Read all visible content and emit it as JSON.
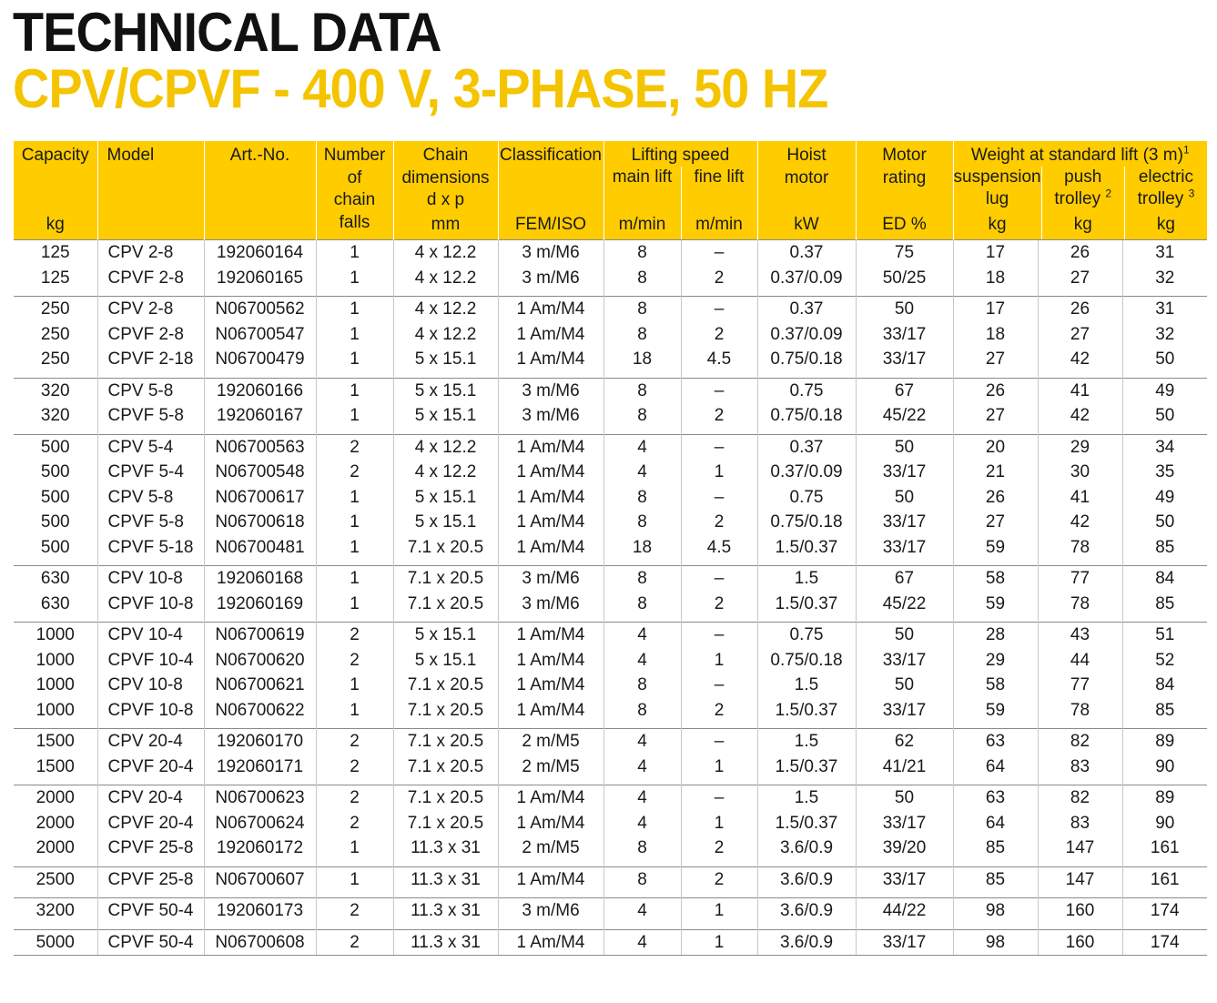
{
  "title": "TECHNICAL DATA",
  "subtitle": "CPV/CPVF - 400 V, 3-PHASE, 50 HZ",
  "header": {
    "capacity": "Capacity",
    "capacity_unit": "kg",
    "model": "Model",
    "art_no": "Art.-No.",
    "chain_falls_1": "Number",
    "chain_falls_2": "of",
    "chain_falls_3": "chain",
    "chain_falls_4": "falls",
    "chain_dim_1": "Chain",
    "chain_dim_2": "dimensions",
    "chain_dim_3": "d x p",
    "chain_dim_unit": "mm",
    "classification": "Classification",
    "classification_unit": "FEM/ISO",
    "lifting_speed": "Lifting speed",
    "main_lift": "main lift",
    "main_lift_unit": "m/min",
    "fine_lift": "fine lift",
    "fine_lift_unit": "m/min",
    "hoist_1": "Hoist",
    "hoist_2": "motor",
    "hoist_unit": "kW",
    "motor_1": "Motor",
    "motor_2": "rating",
    "motor_unit": "ED %",
    "weight": "Weight at standard lift (3 m)",
    "weight_sup": "1",
    "suspension_1": "suspension",
    "suspension_2": "lug",
    "suspension_unit": "kg",
    "push_1": "push",
    "push_2": "trolley",
    "push_sup": "2",
    "push_unit": "kg",
    "electric_1": "electric",
    "electric_2": "trolley",
    "electric_sup": "3",
    "electric_unit": "kg"
  },
  "groups": [
    [
      [
        "125",
        "CPV 2-8",
        "192060164",
        "1",
        "4 x 12.2",
        "3 m/M6",
        "8",
        "–",
        "0.37",
        "75",
        "17",
        "26",
        "31"
      ],
      [
        "125",
        "CPVF 2-8",
        "192060165",
        "1",
        "4 x 12.2",
        "3 m/M6",
        "8",
        "2",
        "0.37/0.09",
        "50/25",
        "18",
        "27",
        "32"
      ]
    ],
    [
      [
        "250",
        "CPV 2-8",
        "N06700562",
        "1",
        "4 x 12.2",
        "1 Am/M4",
        "8",
        "–",
        "0.37",
        "50",
        "17",
        "26",
        "31"
      ],
      [
        "250",
        "CPVF 2-8",
        "N06700547",
        "1",
        "4 x 12.2",
        "1 Am/M4",
        "8",
        "2",
        "0.37/0.09",
        "33/17",
        "18",
        "27",
        "32"
      ],
      [
        "250",
        "CPVF 2-18",
        "N06700479",
        "1",
        "5 x 15.1",
        "1 Am/M4",
        "18",
        "4.5",
        "0.75/0.18",
        "33/17",
        "27",
        "42",
        "50"
      ]
    ],
    [
      [
        "320",
        "CPV 5-8",
        "192060166",
        "1",
        "5 x 15.1",
        "3 m/M6",
        "8",
        "–",
        "0.75",
        "67",
        "26",
        "41",
        "49"
      ],
      [
        "320",
        "CPVF 5-8",
        "192060167",
        "1",
        "5 x 15.1",
        "3 m/M6",
        "8",
        "2",
        "0.75/0.18",
        "45/22",
        "27",
        "42",
        "50"
      ]
    ],
    [
      [
        "500",
        "CPV 5-4",
        "N06700563",
        "2",
        "4 x 12.2",
        "1 Am/M4",
        "4",
        "–",
        "0.37",
        "50",
        "20",
        "29",
        "34"
      ],
      [
        "500",
        "CPVF 5-4",
        "N06700548",
        "2",
        "4 x 12.2",
        "1 Am/M4",
        "4",
        "1",
        "0.37/0.09",
        "33/17",
        "21",
        "30",
        "35"
      ],
      [
        "500",
        "CPV 5-8",
        "N06700617",
        "1",
        "5 x 15.1",
        "1 Am/M4",
        "8",
        "–",
        "0.75",
        "50",
        "26",
        "41",
        "49"
      ],
      [
        "500",
        "CPVF 5-8",
        "N06700618",
        "1",
        "5 x 15.1",
        "1 Am/M4",
        "8",
        "2",
        "0.75/0.18",
        "33/17",
        "27",
        "42",
        "50"
      ],
      [
        "500",
        "CPVF 5-18",
        "N06700481",
        "1",
        "7.1 x 20.5",
        "1 Am/M4",
        "18",
        "4.5",
        "1.5/0.37",
        "33/17",
        "59",
        "78",
        "85"
      ]
    ],
    [
      [
        "630",
        "CPV 10-8",
        "192060168",
        "1",
        "7.1 x 20.5",
        "3 m/M6",
        "8",
        "–",
        "1.5",
        "67",
        "58",
        "77",
        "84"
      ],
      [
        "630",
        "CPVF 10-8",
        "192060169",
        "1",
        "7.1 x 20.5",
        "3 m/M6",
        "8",
        "2",
        "1.5/0.37",
        "45/22",
        "59",
        "78",
        "85"
      ]
    ],
    [
      [
        "1000",
        "CPV 10-4",
        "N06700619",
        "2",
        "5 x 15.1",
        "1 Am/M4",
        "4",
        "–",
        "0.75",
        "50",
        "28",
        "43",
        "51"
      ],
      [
        "1000",
        "CPVF 10-4",
        "N06700620",
        "2",
        "5 x 15.1",
        "1 Am/M4",
        "4",
        "1",
        "0.75/0.18",
        "33/17",
        "29",
        "44",
        "52"
      ],
      [
        "1000",
        "CPV 10-8",
        "N06700621",
        "1",
        "7.1 x 20.5",
        "1 Am/M4",
        "8",
        "–",
        "1.5",
        "50",
        "58",
        "77",
        "84"
      ],
      [
        "1000",
        "CPVF 10-8",
        "N06700622",
        "1",
        "7.1 x 20.5",
        "1 Am/M4",
        "8",
        "2",
        "1.5/0.37",
        "33/17",
        "59",
        "78",
        "85"
      ]
    ],
    [
      [
        "1500",
        "CPV 20-4",
        "192060170",
        "2",
        "7.1 x 20.5",
        "2 m/M5",
        "4",
        "–",
        "1.5",
        "62",
        "63",
        "82",
        "89"
      ],
      [
        "1500",
        "CPVF 20-4",
        "192060171",
        "2",
        "7.1 x 20.5",
        "2 m/M5",
        "4",
        "1",
        "1.5/0.37",
        "41/21",
        "64",
        "83",
        "90"
      ]
    ],
    [
      [
        "2000",
        "CPV 20-4",
        "N06700623",
        "2",
        "7.1 x 20.5",
        "1 Am/M4",
        "4",
        "–",
        "1.5",
        "50",
        "63",
        "82",
        "89"
      ],
      [
        "2000",
        "CPVF 20-4",
        "N06700624",
        "2",
        "7.1 x 20.5",
        "1 Am/M4",
        "4",
        "1",
        "1.5/0.37",
        "33/17",
        "64",
        "83",
        "90"
      ],
      [
        "2000",
        "CPVF 25-8",
        "192060172",
        "1",
        "11.3 x 31",
        "2 m/M5",
        "8",
        "2",
        "3.6/0.9",
        "39/20",
        "85",
        "147",
        "161"
      ]
    ],
    [
      [
        "2500",
        "CPVF 25-8",
        "N06700607",
        "1",
        "11.3 x 31",
        "1 Am/M4",
        "8",
        "2",
        "3.6/0.9",
        "33/17",
        "85",
        "147",
        "161"
      ]
    ],
    [
      [
        "3200",
        "CPVF 50-4",
        "192060173",
        "2",
        "11.3 x 31",
        "3 m/M6",
        "4",
        "1",
        "3.6/0.9",
        "44/22",
        "98",
        "160",
        "174"
      ]
    ],
    [
      [
        "5000",
        "CPVF 50-4",
        "N06700608",
        "2",
        "11.3 x 31",
        "1 Am/M4",
        "4",
        "1",
        "3.6/0.9",
        "33/17",
        "98",
        "160",
        "174"
      ]
    ]
  ]
}
